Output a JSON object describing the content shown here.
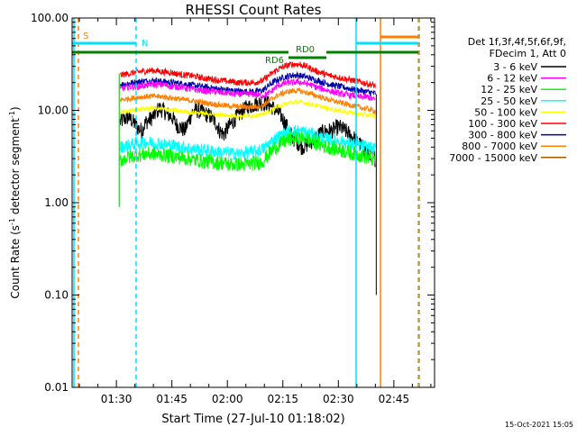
{
  "chart_data": {
    "type": "line",
    "title": "RHESSI Count Rates",
    "xlabel": "Start Time (27-Jul-10 01:18:02)",
    "ylabel_main": "Count Rate (s",
    "ylabel_sup1": "-1",
    "ylabel_mid": " detector segment",
    "ylabel_sup2": "-1",
    "ylabel_end": ")",
    "y_scale": "log",
    "ylim": [
      0.01,
      100
    ],
    "xlim": [
      "01:18:02",
      "02:56:00"
    ],
    "x_ticks": [
      "01:30",
      "01:45",
      "02:00",
      "02:15",
      "02:30",
      "02:45"
    ],
    "y_ticks": [
      "0.01",
      "0.10",
      "1.00",
      "10.00",
      "100.00"
    ],
    "legend": {
      "header_1": "Det 1f,3f,4f,5f,6f,9f,",
      "header_2": "FDecim 1, Att 0",
      "placement": "right"
    },
    "series": [
      {
        "name": "3 - 6 keV",
        "color": "#000000",
        "base": [
          7.5,
          8,
          8.5,
          7.5,
          6.5,
          6,
          7.5,
          8,
          9,
          10.5,
          10,
          9,
          8.5,
          7,
          6.5,
          6,
          8,
          10,
          10,
          9.5,
          9,
          8.5,
          7.5,
          6,
          5.5,
          6.5,
          7.5,
          8.5,
          9.5,
          10.5,
          11,
          11.5,
          12,
          12,
          12,
          11,
          10,
          9,
          7.5,
          6,
          5,
          4.5,
          4,
          4.2,
          4.5,
          5,
          5.5,
          5.8,
          6,
          6,
          6.5,
          6.5,
          6,
          5.5,
          5,
          4.5,
          4,
          3.5,
          3.5,
          3
        ]
      },
      {
        "name": "6 - 12 keV",
        "color": "#ff00ff",
        "base": [
          17,
          17.5,
          18,
          18,
          18,
          18.5,
          18.5,
          19,
          19,
          19,
          19,
          18.5,
          18,
          18,
          18,
          17.5,
          17,
          17,
          16.5,
          16.5,
          16,
          16,
          16,
          15.5,
          15.5,
          15.5,
          15,
          15,
          15,
          15,
          15,
          15,
          14.5,
          14.5,
          15,
          16,
          18,
          19,
          19.5,
          20,
          20,
          20.5,
          20,
          19.5,
          19,
          18,
          17.5,
          17,
          16.5,
          16,
          15.5,
          15,
          15,
          14.5,
          14.5,
          14,
          14,
          14,
          13.5,
          13
        ]
      },
      {
        "name": "12 - 25 keV",
        "color": "#00ff00",
        "base": [
          2.9,
          3,
          3.1,
          3.2,
          3.3,
          3.3,
          3.4,
          3.4,
          3.4,
          3.3,
          3.3,
          3.2,
          3.2,
          3.1,
          3.1,
          3,
          3,
          2.9,
          2.9,
          2.8,
          2.8,
          2.8,
          2.7,
          2.7,
          2.7,
          2.6,
          2.6,
          2.6,
          2.6,
          2.6,
          2.6,
          2.7,
          2.7,
          2.8,
          3.2,
          3.6,
          4,
          4.3,
          4.6,
          4.8,
          5,
          5,
          5,
          4.9,
          4.7,
          4.5,
          4.3,
          4.1,
          4,
          3.9,
          3.8,
          3.7,
          3.6,
          3.5,
          3.4,
          3.3,
          3.2,
          3.1,
          3,
          2.9
        ]
      },
      {
        "name": "25 - 50 keV",
        "color": "#00ffff",
        "base": [
          4,
          4.1,
          4.2,
          4.3,
          4.4,
          4.5,
          4.5,
          4.5,
          4.4,
          4.4,
          4.3,
          4.2,
          4.2,
          4.1,
          4,
          4,
          3.9,
          3.8,
          3.8,
          3.7,
          3.7,
          3.6,
          3.6,
          3.5,
          3.5,
          3.5,
          3.4,
          3.4,
          3.4,
          3.5,
          3.5,
          3.6,
          3.7,
          3.8,
          4.2,
          4.6,
          5,
          5.3,
          5.6,
          5.8,
          6,
          6,
          5.9,
          5.8,
          5.6,
          5.4,
          5.2,
          5,
          4.9,
          4.8,
          4.7,
          4.6,
          4.5,
          4.4,
          4.3,
          4.2,
          4.1,
          4,
          3.9,
          3.8
        ]
      },
      {
        "name": "50 - 100 keV",
        "color": "#ffff00",
        "base": [
          9.5,
          9.6,
          9.8,
          10,
          10.2,
          10.3,
          10.4,
          10.5,
          10.5,
          10.4,
          10.3,
          10.2,
          10,
          9.9,
          9.8,
          9.7,
          9.6,
          9.5,
          9.4,
          9.3,
          9.2,
          9.1,
          9,
          9,
          8.9,
          8.8,
          8.8,
          8.7,
          8.7,
          8.7,
          8.8,
          8.8,
          8.9,
          9,
          9.5,
          10,
          10.8,
          11.2,
          11.6,
          12,
          12.2,
          12.3,
          12.2,
          12,
          11.7,
          11.4,
          11.1,
          10.8,
          10.5,
          10.3,
          10.1,
          9.9,
          9.7,
          9.5,
          9.3,
          9.1,
          9,
          8.9,
          8.8,
          8.6
        ]
      },
      {
        "name": "100 - 300 keV",
        "color": "#ff0000",
        "base": [
          24,
          24.5,
          25,
          25.5,
          26,
          26.5,
          26.5,
          27,
          27,
          26.5,
          26,
          26,
          25.5,
          25,
          24.5,
          24,
          24,
          23.5,
          23,
          22.5,
          22,
          22,
          21.5,
          21,
          21,
          20.5,
          20.5,
          20,
          20,
          20,
          20,
          20,
          20.5,
          21,
          23,
          25,
          27,
          28.5,
          30,
          31,
          31.5,
          31.5,
          31,
          30,
          28.5,
          27,
          26,
          25,
          24,
          23.5,
          23,
          22.5,
          22,
          21.5,
          21,
          20.5,
          20,
          19.5,
          19,
          18.5
        ]
      },
      {
        "name": "300 - 800 keV",
        "color": "#0000aa",
        "base": [
          19,
          19.3,
          19.6,
          20,
          20.3,
          20.6,
          20.8,
          21,
          21,
          20.8,
          20.5,
          20.3,
          20,
          19.8,
          19.5,
          19.2,
          19,
          18.7,
          18.4,
          18.1,
          17.8,
          17.5,
          17.3,
          17,
          16.8,
          16.6,
          16.4,
          16.2,
          16,
          16,
          16,
          16,
          16.2,
          16.5,
          18,
          19.5,
          21,
          22,
          23,
          23.5,
          24,
          24,
          23.6,
          23,
          22.2,
          21.4,
          20.7,
          20,
          19.4,
          18.9,
          18.4,
          18,
          17.6,
          17.2,
          16.8,
          16.5,
          16.2,
          15.9,
          15.6,
          15.3
        ]
      },
      {
        "name": "800 - 7000 keV",
        "color": "#ff8000",
        "base": [
          13,
          13.2,
          13.4,
          13.6,
          13.8,
          14,
          14.1,
          14.2,
          14.2,
          14.1,
          14,
          13.8,
          13.6,
          13.4,
          13.2,
          13,
          12.8,
          12.6,
          12.4,
          12.2,
          12,
          11.8,
          11.6,
          11.5,
          11.3,
          11.2,
          11.1,
          11,
          10.9,
          10.9,
          10.9,
          11,
          11.1,
          11.3,
          12.2,
          13.2,
          14.2,
          15,
          15.6,
          16,
          16.3,
          16.3,
          16,
          15.6,
          15.1,
          14.6,
          14.1,
          13.6,
          13.2,
          12.8,
          12.4,
          12.1,
          11.8,
          11.5,
          11.2,
          10.9,
          10.6,
          10.4,
          10.1,
          9.8
        ]
      },
      {
        "name": "7000 - 15000 keV",
        "color": "#a05a00",
        "base": []
      }
    ],
    "annotations": {
      "s_label": "S",
      "n_label": "N",
      "rd0_label": "RD0",
      "rd6_label": "RD6"
    }
  },
  "footer": {
    "timestamp": "15-Oct-2021 15:05"
  }
}
